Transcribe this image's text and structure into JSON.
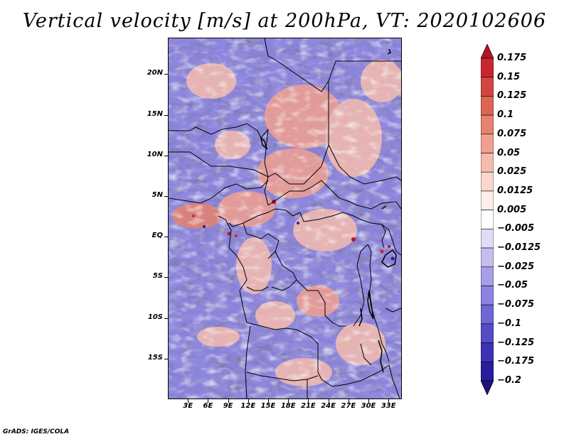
{
  "title": "Vertical velocity [m/s] at 200hPa, VT: 2020102606",
  "credit": "GrADS: IGES/COLA",
  "map": {
    "region": "Central Africa",
    "lon_range": [
      0,
      35
    ],
    "lat_range": [
      -20,
      24.5
    ],
    "lat_ticks": [
      {
        "value": 20,
        "label": "20N"
      },
      {
        "value": 15,
        "label": "15N"
      },
      {
        "value": 10,
        "label": "10N"
      },
      {
        "value": 5,
        "label": "5N"
      },
      {
        "value": 0,
        "label": "EQ"
      },
      {
        "value": -5,
        "label": "5S"
      },
      {
        "value": -10,
        "label": "10S"
      },
      {
        "value": -15,
        "label": "15S"
      }
    ],
    "lon_ticks": [
      {
        "value": 3,
        "label": "3E"
      },
      {
        "value": 6,
        "label": "6E"
      },
      {
        "value": 9,
        "label": "9E"
      },
      {
        "value": 12,
        "label": "12E"
      },
      {
        "value": 15,
        "label": "15E"
      },
      {
        "value": 18,
        "label": "18E"
      },
      {
        "value": 21,
        "label": "21E"
      },
      {
        "value": 24,
        "label": "24E"
      },
      {
        "value": 27,
        "label": "27E"
      },
      {
        "value": 30,
        "label": "30E"
      },
      {
        "value": 33,
        "label": "33E"
      }
    ],
    "shading": "Fine-scale mixture of weak ascent (red) and descent (blue/purple); red patches over Chad, Central African Republic and around 3N-EQ; predominantly blue over the Atlantic and southern Africa."
  },
  "colorbar": {
    "levels": [
      "0.175",
      "0.15",
      "0.125",
      "0.1",
      "0.075",
      "0.05",
      "0.025",
      "0.0125",
      "0.005",
      "−0.005",
      "−0.0125",
      "−0.025",
      "−0.05",
      "−0.075",
      "−0.1",
      "−0.125",
      "−0.175",
      "−0.2"
    ],
    "colors": [
      "#b4141e",
      "#c8282d",
      "#d2463f",
      "#dc6455",
      "#e6826e",
      "#f0a090",
      "#f5bcae",
      "#fad7cd",
      "#fdeee9",
      "#ffffff",
      "#e0dcf5",
      "#c4bdee",
      "#a79deb",
      "#8c82e0",
      "#7066d4",
      "#554dc7",
      "#3c33b4",
      "#281e9b",
      "#1e1478"
    ]
  }
}
